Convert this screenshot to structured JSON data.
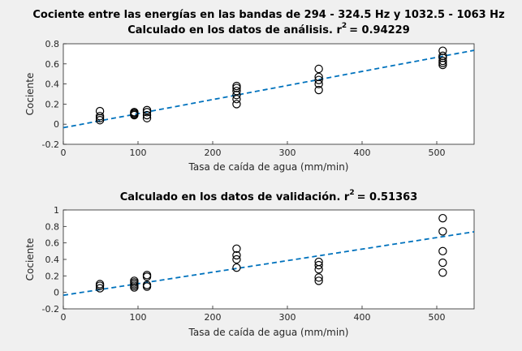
{
  "chart_data": [
    {
      "type": "scatter",
      "title": "Cociente entre las energías en las bandas de 294 - 324.5 Hz y 1032.5 - 1063 Hz",
      "subtitle": "Calculado en los datos de análisis.",
      "r2_label": "r",
      "r2_exp": "2",
      "r2_value": "= 0.94229",
      "xlabel": "Tasa de caída de agua (mm/min)",
      "ylabel": "Cociente",
      "xlim": [
        0,
        550
      ],
      "ylim": [
        -0.2,
        0.8
      ],
      "xticks": [
        "0",
        "100",
        "200",
        "300",
        "400",
        "500"
      ],
      "yticks": [
        "-0.2",
        "0",
        "0.2",
        "0.4",
        "0.6",
        "0.8"
      ],
      "grid": false,
      "colors": {
        "markers": "#000000",
        "fit": "#0072bd"
      },
      "points": [
        {
          "x": 49,
          "y": 0.04
        },
        {
          "x": 49,
          "y": 0.06
        },
        {
          "x": 49,
          "y": 0.08
        },
        {
          "x": 49,
          "y": 0.13
        },
        {
          "x": 95,
          "y": 0.09
        },
        {
          "x": 95,
          "y": 0.1
        },
        {
          "x": 95,
          "y": 0.11
        },
        {
          "x": 95,
          "y": 0.12
        },
        {
          "x": 112,
          "y": 0.06
        },
        {
          "x": 112,
          "y": 0.09
        },
        {
          "x": 112,
          "y": 0.12
        },
        {
          "x": 112,
          "y": 0.14
        },
        {
          "x": 232,
          "y": 0.2
        },
        {
          "x": 232,
          "y": 0.25
        },
        {
          "x": 232,
          "y": 0.29
        },
        {
          "x": 232,
          "y": 0.33
        },
        {
          "x": 232,
          "y": 0.36
        },
        {
          "x": 232,
          "y": 0.38
        },
        {
          "x": 342,
          "y": 0.34
        },
        {
          "x": 342,
          "y": 0.4
        },
        {
          "x": 342,
          "y": 0.44
        },
        {
          "x": 342,
          "y": 0.47
        },
        {
          "x": 342,
          "y": 0.55
        },
        {
          "x": 508,
          "y": 0.59
        },
        {
          "x": 508,
          "y": 0.61
        },
        {
          "x": 508,
          "y": 0.63
        },
        {
          "x": 508,
          "y": 0.66
        },
        {
          "x": 508,
          "y": 0.68
        },
        {
          "x": 508,
          "y": 0.73
        }
      ],
      "fit_line": {
        "x": [
          0,
          550
        ],
        "y": [
          -0.035,
          0.735
        ]
      }
    },
    {
      "type": "scatter",
      "title": "",
      "subtitle": "Calculado en los datos de validación.",
      "r2_label": "r",
      "r2_exp": "2",
      "r2_value": "= 0.51363",
      "xlabel": "Tasa de caída de agua (mm/min)",
      "ylabel": "Cociente",
      "xlim": [
        0,
        550
      ],
      "ylim": [
        -0.2,
        1.0
      ],
      "xticks": [
        "0",
        "100",
        "200",
        "300",
        "400",
        "500"
      ],
      "yticks": [
        "-0.2",
        "0",
        "0.2",
        "0.4",
        "0.6",
        "0.8",
        "1"
      ],
      "grid": false,
      "colors": {
        "markers": "#000000",
        "fit": "#0072bd"
      },
      "points": [
        {
          "x": 49,
          "y": 0.05
        },
        {
          "x": 49,
          "y": 0.08
        },
        {
          "x": 49,
          "y": 0.1
        },
        {
          "x": 95,
          "y": 0.06
        },
        {
          "x": 95,
          "y": 0.08
        },
        {
          "x": 95,
          "y": 0.1
        },
        {
          "x": 95,
          "y": 0.12
        },
        {
          "x": 95,
          "y": 0.14
        },
        {
          "x": 112,
          "y": 0.07
        },
        {
          "x": 112,
          "y": 0.09
        },
        {
          "x": 112,
          "y": 0.19
        },
        {
          "x": 112,
          "y": 0.21
        },
        {
          "x": 232,
          "y": 0.3
        },
        {
          "x": 232,
          "y": 0.4
        },
        {
          "x": 232,
          "y": 0.45
        },
        {
          "x": 232,
          "y": 0.53
        },
        {
          "x": 342,
          "y": 0.14
        },
        {
          "x": 342,
          "y": 0.18
        },
        {
          "x": 342,
          "y": 0.28
        },
        {
          "x": 342,
          "y": 0.33
        },
        {
          "x": 342,
          "y": 0.37
        },
        {
          "x": 508,
          "y": 0.24
        },
        {
          "x": 508,
          "y": 0.36
        },
        {
          "x": 508,
          "y": 0.5
        },
        {
          "x": 508,
          "y": 0.74
        },
        {
          "x": 508,
          "y": 0.9
        }
      ],
      "fit_line": {
        "x": [
          0,
          550
        ],
        "y": [
          -0.035,
          0.735
        ]
      }
    }
  ]
}
